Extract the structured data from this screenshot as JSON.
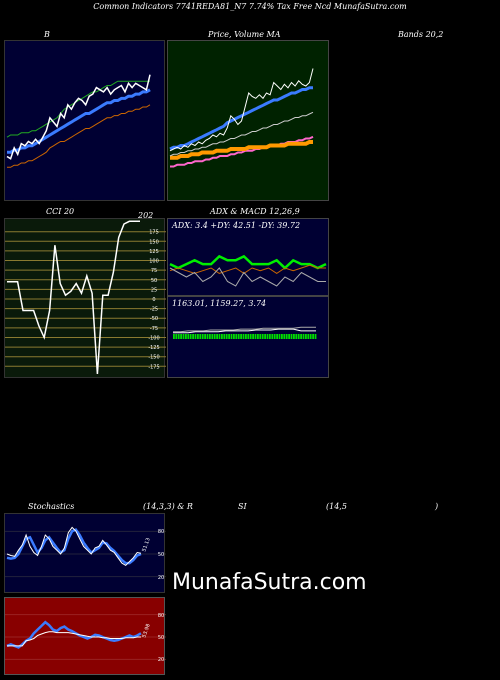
{
  "header": {
    "title": "Common Indicators 7741REDA81_N7 7.74% Tax Free  Ncd MunafaSutra.com"
  },
  "panels": {
    "bollinger": {
      "label": "B"
    },
    "price_ma": {
      "label": "Price,  Volume  MA"
    },
    "bands": {
      "label": "Bands 20,2"
    },
    "cci": {
      "label": "CCI 20",
      "value": "202"
    },
    "adx_macd": {
      "label": "ADX  & MACD 12,26,9",
      "adx_text": "ADX: 3.4  +DY: 42.51 -DY: 39.72",
      "macd_text": "1163.01,  1159.27,  3.74"
    },
    "stoch_title": {
      "a": "Stochastics",
      "b": "(14,3,3) & R",
      "c": "SI",
      "d": "(14,5",
      "e": ")"
    },
    "stoch": {
      "value": "51.13"
    },
    "rsi": {
      "value": "53.98"
    }
  },
  "watermark": "MunafaSutra.com",
  "colors": {
    "navy": "#000033",
    "green_bg": "#002200",
    "red_bg": "#880000",
    "cci_bg": "#0a1a0a",
    "grid_olive": "#8a7a30"
  },
  "chart_data": [
    {
      "type": "line",
      "title": "B",
      "x": [
        0,
        1,
        2,
        3,
        4,
        5,
        6,
        7,
        8,
        9,
        10,
        11,
        12,
        13,
        14,
        15,
        16,
        17,
        18,
        19,
        20,
        21,
        22,
        23,
        24,
        25,
        26,
        27,
        28,
        29,
        30,
        31,
        32,
        33,
        34,
        35,
        36,
        37,
        38,
        39,
        40
      ],
      "series": [
        {
          "values": [
            66,
            65,
            70,
            67,
            72,
            71,
            73,
            72,
            74,
            72,
            75,
            78,
            84,
            82,
            80,
            86,
            84,
            90,
            88,
            91,
            93,
            92,
            90,
            94,
            95,
            98,
            97,
            96,
            98,
            95,
            97,
            98,
            99,
            96,
            100,
            98,
            100,
            99,
            98,
            97,
            104
          ]
        },
        {
          "values": [
            68,
            68,
            69,
            69,
            70,
            70,
            71,
            71,
            72,
            73,
            74,
            75,
            76,
            77,
            78,
            79,
            80,
            81,
            82,
            83,
            84,
            85,
            86,
            86,
            87,
            88,
            89,
            90,
            91,
            91,
            92,
            92,
            93,
            93,
            94,
            94,
            95,
            95,
            96,
            96,
            97
          ]
        },
        {
          "values": [
            75,
            76,
            76,
            76,
            77,
            77,
            77,
            78,
            78,
            79,
            80,
            81,
            82,
            83,
            84,
            86,
            88,
            89,
            90,
            91,
            92,
            93,
            94,
            95,
            96,
            96,
            97,
            98,
            99,
            99,
            100,
            101,
            101,
            101,
            101,
            101,
            101,
            101,
            101,
            101,
            101
          ]
        },
        {
          "values": [
            61,
            61,
            62,
            62,
            63,
            63,
            64,
            64,
            65,
            66,
            67,
            68,
            70,
            71,
            72,
            73,
            73,
            74,
            75,
            76,
            77,
            78,
            79,
            79,
            80,
            81,
            82,
            83,
            84,
            84,
            85,
            85,
            86,
            86,
            87,
            87,
            88,
            88,
            89,
            89,
            90
          ]
        }
      ]
    },
    {
      "type": "line",
      "title": "Price,  Volume  MA",
      "x": [
        0,
        1,
        2,
        3,
        4,
        5,
        6,
        7,
        8,
        9,
        10,
        11,
        12,
        13,
        14,
        15,
        16,
        17,
        18,
        19,
        20,
        21,
        22,
        23,
        24,
        25,
        26,
        27,
        28,
        29,
        30,
        31,
        32,
        33,
        34,
        35,
        36,
        37,
        38,
        39,
        40
      ],
      "series": [
        {
          "values": [
            53,
            54,
            55,
            54,
            56,
            55,
            57,
            56,
            58,
            57,
            59,
            60,
            62,
            61,
            63,
            62,
            66,
            73,
            71,
            68,
            70,
            78,
            86,
            84,
            83,
            85,
            83,
            86,
            85,
            92,
            90,
            88,
            91,
            89,
            92,
            90,
            93,
            91,
            90,
            92,
            100
          ]
        },
        {
          "values": [
            54,
            55,
            55,
            56,
            56,
            57,
            58,
            59,
            60,
            61,
            62,
            63,
            64,
            65,
            66,
            67,
            69,
            70,
            71,
            72,
            73,
            74,
            75,
            76,
            77,
            78,
            79,
            80,
            81,
            82,
            82,
            83,
            84,
            85,
            86,
            86,
            87,
            88,
            88,
            89,
            89
          ]
        },
        {
          "values": [
            50,
            51,
            51,
            52,
            52,
            53,
            53,
            54,
            54,
            55,
            55,
            56,
            57,
            57,
            58,
            58,
            59,
            60,
            60,
            61,
            62,
            62,
            63,
            64,
            64,
            65,
            66,
            66,
            67,
            68,
            68,
            69,
            70,
            70,
            71,
            72,
            72,
            73,
            73,
            74,
            75
          ]
        },
        {
          "values": [
            49,
            49,
            49,
            50,
            50,
            50,
            51,
            51,
            51,
            52,
            52,
            52,
            52,
            53,
            53,
            53,
            53,
            54,
            54,
            54,
            54,
            54,
            55,
            55,
            55,
            55,
            55,
            55,
            56,
            56,
            56,
            56,
            56,
            57,
            57,
            57,
            57,
            57,
            57,
            58,
            58
          ]
        },
        {
          "values": [
            44,
            44,
            45,
            45,
            45,
            46,
            46,
            47,
            47,
            47,
            48,
            48,
            49,
            49,
            50,
            50,
            50,
            51,
            51,
            52,
            52,
            53,
            53,
            53,
            54,
            54,
            55,
            55,
            56,
            56,
            56,
            57,
            57,
            58,
            58,
            58,
            59,
            59,
            60,
            60,
            61
          ]
        }
      ]
    },
    {
      "type": "line",
      "title": "CCI 20",
      "yticks": [
        175,
        150,
        125,
        100,
        75,
        50,
        25,
        0,
        -25,
        -50,
        -75,
        -100,
        -125,
        -150,
        -175
      ],
      "ylim": [
        -195,
        195
      ],
      "x": [
        0,
        1,
        2,
        3,
        4,
        5,
        6,
        7,
        8,
        9,
        10,
        11,
        12,
        13,
        14,
        15,
        16,
        17,
        18,
        19,
        20,
        21,
        22,
        23,
        24,
        25
      ],
      "values": [
        45,
        45,
        45,
        -30,
        -30,
        -30,
        -70,
        -100,
        -30,
        140,
        40,
        10,
        20,
        40,
        15,
        60,
        15,
        -195,
        10,
        10,
        70,
        160,
        195,
        202,
        202,
        202
      ]
    },
    {
      "type": "line",
      "title": "ADX  & MACD 12,26,9",
      "x": [
        0,
        1,
        2,
        3,
        4,
        5,
        6,
        7,
        8,
        9,
        10,
        11,
        12,
        13,
        14,
        15,
        16,
        17,
        18,
        19
      ],
      "series": [
        {
          "values": [
            42,
            41,
            42,
            43,
            42,
            42,
            44,
            43,
            43,
            44,
            42,
            42,
            42,
            43,
            41,
            43,
            42,
            42,
            41,
            42
          ]
        },
        {
          "values": [
            39,
            40,
            39,
            38,
            39,
            40,
            38,
            39,
            40,
            38,
            40,
            39,
            40,
            38,
            40,
            39,
            40,
            41,
            40,
            40
          ]
        },
        {
          "values": [
            6,
            5,
            4,
            5,
            3,
            4,
            6,
            3,
            2,
            5,
            3,
            4,
            3,
            2,
            4,
            3,
            5,
            4,
            3,
            3
          ]
        }
      ]
    },
    {
      "type": "line",
      "title": "MACD",
      "x": [
        0,
        1,
        2,
        3,
        4,
        5,
        6,
        7,
        8,
        9,
        10,
        11,
        12,
        13,
        14,
        15,
        16,
        17,
        18,
        19
      ],
      "series": [
        {
          "values": [
            1158,
            1158,
            1159,
            1159,
            1159,
            1160,
            1160,
            1160,
            1160,
            1161,
            1161,
            1161,
            1162,
            1162,
            1162,
            1162,
            1162,
            1163,
            1163,
            1163
          ]
        },
        {
          "values": [
            1157,
            1157,
            1157,
            1158,
            1158,
            1158,
            1158,
            1159,
            1159,
            1159,
            1159,
            1160,
            1160,
            1160,
            1161,
            1161,
            1161,
            1159,
            1159,
            1159
          ]
        }
      ]
    },
    {
      "type": "line",
      "title": "Stochastics",
      "yticks": [
        80,
        50,
        20
      ],
      "ylim": [
        0,
        100
      ],
      "x": [
        0,
        1,
        2,
        3,
        4,
        5,
        6,
        7,
        8,
        9,
        10,
        11,
        12,
        13,
        14,
        15,
        16,
        17,
        18,
        19,
        20,
        21,
        22,
        23,
        24,
        25,
        26,
        27,
        28,
        29,
        30,
        31,
        32,
        33,
        34,
        35
      ],
      "series": [
        {
          "values": [
            50,
            48,
            47,
            55,
            62,
            75,
            60,
            52,
            48,
            60,
            75,
            70,
            60,
            55,
            50,
            58,
            78,
            85,
            80,
            70,
            60,
            55,
            50,
            58,
            60,
            68,
            62,
            55,
            52,
            45,
            38,
            35,
            40,
            45,
            52,
            51
          ]
        },
        {
          "values": [
            45,
            44,
            45,
            50,
            60,
            70,
            72,
            62,
            52,
            58,
            68,
            72,
            65,
            58,
            52,
            55,
            70,
            80,
            82,
            75,
            65,
            58,
            52,
            55,
            58,
            65,
            64,
            58,
            54,
            48,
            42,
            38,
            38,
            42,
            48,
            50
          ]
        }
      ]
    },
    {
      "type": "line",
      "title": "RSI",
      "yticks": [
        80,
        50,
        20
      ],
      "ylim": [
        0,
        100
      ],
      "x": [
        0,
        1,
        2,
        3,
        4,
        5,
        6,
        7,
        8,
        9,
        10,
        11,
        12,
        13,
        14,
        15,
        16,
        17,
        18,
        19,
        20,
        21,
        22,
        23,
        24,
        25,
        26,
        27,
        28,
        29,
        30,
        31,
        32,
        33,
        34,
        35
      ],
      "series": [
        {
          "values": [
            38,
            40,
            38,
            36,
            40,
            45,
            48,
            55,
            60,
            65,
            70,
            66,
            60,
            58,
            62,
            64,
            60,
            58,
            55,
            52,
            50,
            48,
            50,
            53,
            52,
            50,
            48,
            46,
            45,
            46,
            48,
            50,
            52,
            50,
            52,
            55
          ]
        },
        {
          "values": [
            38,
            38,
            38,
            38,
            38,
            45,
            46,
            48,
            52,
            54,
            56,
            57,
            57,
            56,
            56,
            56,
            56,
            55,
            54,
            53,
            52,
            51,
            50,
            50,
            50,
            49,
            49,
            48,
            48,
            48,
            48,
            49,
            49,
            49,
            50,
            50
          ]
        }
      ]
    }
  ]
}
